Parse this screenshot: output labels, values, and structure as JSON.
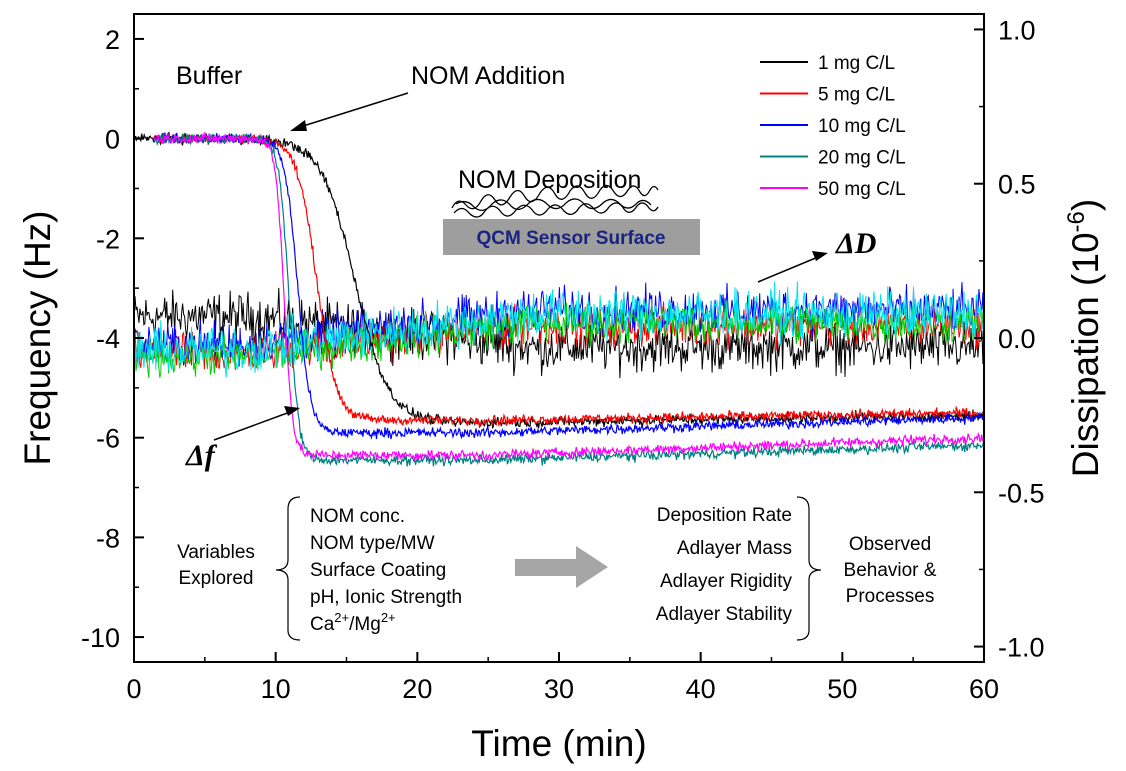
{
  "chart_data": {
    "type": "line",
    "xlabel": "Time (min)",
    "ylabel_left": "Frequency (Hz)",
    "ylabel_right_base": "Dissipation (10",
    "ylabel_right_exp": "-6",
    "ylabel_right_end": ")",
    "xlim": [
      0,
      60
    ],
    "ylim_left": [
      -10.5,
      2.5
    ],
    "ylim_right": [
      -1.05,
      1.05
    ],
    "x_ticks": [
      "0",
      "10",
      "20",
      "30",
      "40",
      "50",
      "60"
    ],
    "y_ticks_left": [
      "2",
      "0",
      "-2",
      "-4",
      "-6",
      "-8",
      "-10"
    ],
    "y_ticks_right": [
      "1.0",
      "0.5",
      "0.0",
      "-0.5",
      "-1.0"
    ],
    "legend_position": "top-right",
    "frequency_series": [
      {
        "name": "1 mg C/L",
        "color": "#000000",
        "onset": 12.0,
        "slope": 1.2,
        "plateau": -5.7,
        "end": -5.55
      },
      {
        "name": "5 mg C/L",
        "color": "#ff0000",
        "onset": 10.8,
        "slope": 0.7,
        "plateau": -5.65,
        "end": -5.5
      },
      {
        "name": "10 mg C/L",
        "color": "#0000ff",
        "onset": 10.2,
        "slope": 0.45,
        "plateau": -5.9,
        "end": -5.6
      },
      {
        "name": "20 mg C/L",
        "color": "#008080",
        "onset": 9.9,
        "slope": 0.35,
        "plateau": -6.45,
        "end": -6.15
      },
      {
        "name": "50 mg C/L",
        "color": "#ff00ff",
        "onset": 9.7,
        "slope": 0.3,
        "plateau": -6.35,
        "end": -6.0
      }
    ],
    "dissipation_series": [
      {
        "color": "#000000",
        "start": 0.07,
        "end": -0.03,
        "noise": 0.055
      },
      {
        "color": "#ff0000",
        "start": -0.05,
        "end": 0.04,
        "noise": 0.045
      },
      {
        "color": "#0000ff",
        "start": -0.02,
        "end": 0.09,
        "noise": 0.05
      },
      {
        "color": "#00cc00",
        "start": -0.06,
        "end": 0.05,
        "noise": 0.045
      },
      {
        "color": "#00e5ee",
        "start": -0.04,
        "end": 0.08,
        "noise": 0.055
      }
    ],
    "annotations": {
      "buffer": "Buffer",
      "nom_addition": "NOM Addition",
      "nom_deposition": "NOM  Deposition",
      "sensor_surface": "QCM Sensor Surface",
      "delta_d": "ΔD",
      "delta_f": "Δf",
      "variables_line1": "Variables",
      "variables_line2": "Explored",
      "observed_line1": "Observed",
      "observed_line2": "Behavior &",
      "observed_line3": "Processes",
      "explored_items": [
        "NOM conc.",
        "NOM type/MW",
        "Surface Coating",
        "pH, Ionic Strength"
      ],
      "ca_mg": {
        "ca": "Ca",
        "sup1": "2+",
        "slash": "/Mg",
        "sup2": "2+"
      },
      "behavior_items": [
        "Deposition Rate",
        "Adlayer Mass",
        "Adlayer Rigidity",
        "Adlayer Stability"
      ]
    }
  }
}
